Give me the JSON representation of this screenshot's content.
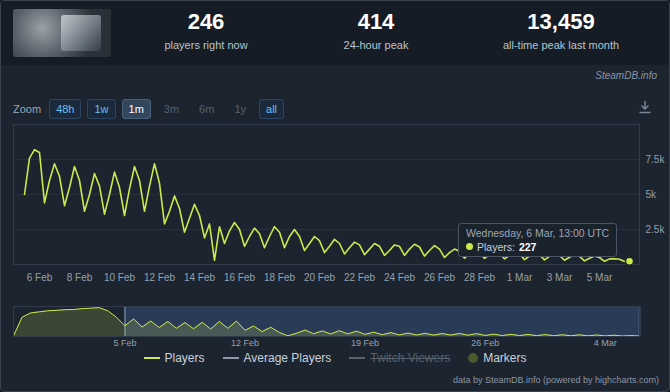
{
  "header": {
    "stats": [
      {
        "value": "246",
        "label": "players right now"
      },
      {
        "value": "414",
        "label": "24-hour peak"
      },
      {
        "value": "13,459",
        "label": "all-time peak last month"
      }
    ],
    "source": "SteamDB.info"
  },
  "zoom": {
    "label": "Zoom",
    "buttons": [
      "48h",
      "1w",
      "1m",
      "3m",
      "6m",
      "1y",
      "all"
    ],
    "active": "1m",
    "disabled": [
      "3m",
      "6m",
      "1y"
    ]
  },
  "chart_data": [
    {
      "type": "line",
      "categories": [
        null,
        null,
        null,
        "6 Feb",
        null,
        null,
        null,
        null,
        null,
        null,
        null,
        "8 Feb",
        null,
        null,
        null,
        null,
        null,
        null,
        null,
        "10 Feb",
        null,
        null,
        null,
        null,
        null,
        null,
        null,
        "12 Feb",
        null,
        null,
        null,
        null,
        null,
        null,
        null,
        "14 Feb",
        null,
        null,
        null,
        null,
        null,
        null,
        null,
        "16 Feb",
        null,
        null,
        null,
        null,
        null,
        null,
        null,
        "18 Feb",
        null,
        null,
        null,
        null,
        null,
        null,
        null,
        "20 Feb",
        null,
        null,
        null,
        null,
        null,
        null,
        null,
        "22 Feb",
        null,
        null,
        null,
        null,
        null,
        null,
        null,
        "24 Feb",
        null,
        null,
        null,
        null,
        null,
        null,
        null,
        "26 Feb",
        null,
        null,
        null,
        null,
        null,
        null,
        null,
        "28 Feb",
        null,
        null,
        null,
        null,
        null,
        null,
        null,
        "1 Mar",
        null,
        null,
        null,
        null,
        null,
        null,
        null,
        "3 Mar",
        null,
        null,
        null,
        null,
        null,
        null,
        null,
        "5 Mar",
        null,
        null,
        null,
        null,
        null,
        null
      ],
      "series": [
        {
          "name": "Players",
          "color": "#cbe94b",
          "values": [
            5000,
            7600,
            8200,
            8000,
            4400,
            6000,
            7200,
            6300,
            4200,
            5500,
            7000,
            6000,
            3800,
            5000,
            6500,
            5600,
            3600,
            5000,
            6600,
            5500,
            3500,
            5400,
            7000,
            6000,
            3800,
            5600,
            7200,
            5800,
            2900,
            3800,
            4900,
            4000,
            2300,
            3300,
            4300,
            3500,
            1900,
            2900,
            300,
            2700,
            1500,
            2400,
            3000,
            2500,
            1300,
            2000,
            2600,
            2200,
            1200,
            2000,
            2700,
            2300,
            1200,
            2000,
            2500,
            2000,
            1000,
            1500,
            2000,
            1700,
            850,
            1300,
            1800,
            1500,
            750,
            1200,
            1600,
            1400,
            700,
            1100,
            1500,
            1300,
            650,
            1000,
            1400,
            1300,
            650,
            1100,
            1450,
            1250,
            600,
            1000,
            1350,
            1100,
            500,
            850,
            1100,
            950,
            450,
            750,
            1000,
            900,
            430,
            700,
            950,
            850,
            400,
            650,
            900,
            750,
            350,
            600,
            800,
            700,
            330,
            580,
            780,
            650,
            300,
            520,
            700,
            580,
            260,
            450,
            600,
            500,
            230,
            400,
            414,
            380,
            220,
            227
          ]
        }
      ],
      "ylim": [
        0,
        10000
      ],
      "yticks": [
        {
          "value": 2500,
          "label": "2.5k"
        },
        {
          "value": 5000,
          "label": "5k"
        },
        {
          "value": 7500,
          "label": "7.5k"
        }
      ],
      "grid": true,
      "legend": "bottom"
    },
    {
      "type": "area",
      "categories": [
        null,
        null,
        null,
        null,
        null,
        null,
        null,
        null,
        null,
        null,
        null,
        null,
        null,
        "5 Feb",
        null,
        null,
        null,
        null,
        null,
        null,
        null,
        null,
        null,
        null,
        null,
        null,
        null,
        "12 Feb",
        null,
        null,
        null,
        null,
        null,
        null,
        null,
        null,
        null,
        null,
        null,
        null,
        null,
        "19 Feb",
        null,
        null,
        null,
        null,
        null,
        null,
        null,
        null,
        null,
        null,
        null,
        null,
        null,
        "26 Feb",
        null,
        null,
        null,
        null,
        null,
        null,
        null,
        null,
        null,
        null,
        null,
        null,
        null,
        "4 Mar",
        null,
        null,
        null,
        null
      ],
      "series": [
        {
          "name": "Players",
          "color": "#cbe94b",
          "values": [
            200,
            9000,
            11000,
            11500,
            12000,
            12200,
            12500,
            12600,
            13000,
            13200,
            13459,
            12000,
            9000,
            5000,
            8200,
            4400,
            7200,
            4200,
            7000,
            3800,
            6500,
            3600,
            6600,
            3500,
            7000,
            3800,
            7200,
            2900,
            4900,
            2300,
            4300,
            1900,
            300,
            1500,
            3000,
            1300,
            2600,
            1200,
            2700,
            1200,
            2500,
            1000,
            2000,
            850,
            1800,
            750,
            1600,
            700,
            1500,
            650,
            1400,
            650,
            1450,
            600,
            1350,
            500,
            1100,
            450,
            1000,
            430,
            950,
            400,
            900,
            350,
            800,
            330,
            780,
            300,
            700,
            260,
            600,
            230,
            414,
            220
          ]
        }
      ],
      "ylim": [
        0,
        14000
      ],
      "tick_labels": "x"
    }
  ],
  "tooltip": {
    "title": "Wednesday, 6 Mar, 13:00 UTC",
    "label": "Players:",
    "value": 227
  },
  "legend_items": [
    {
      "name": "Players",
      "color": "#cbe94b",
      "marker": "line"
    },
    {
      "name": "Average Players",
      "color": "#8d99a6",
      "marker": "line"
    },
    {
      "name": "Twitch Viewers",
      "color": "#59636e",
      "marker": "line",
      "hidden": true
    },
    {
      "name": "Markers",
      "color": "#4b5a2b",
      "marker": "circle"
    }
  ],
  "credits": "data by SteamDB.info (powered by highcharts.com)"
}
